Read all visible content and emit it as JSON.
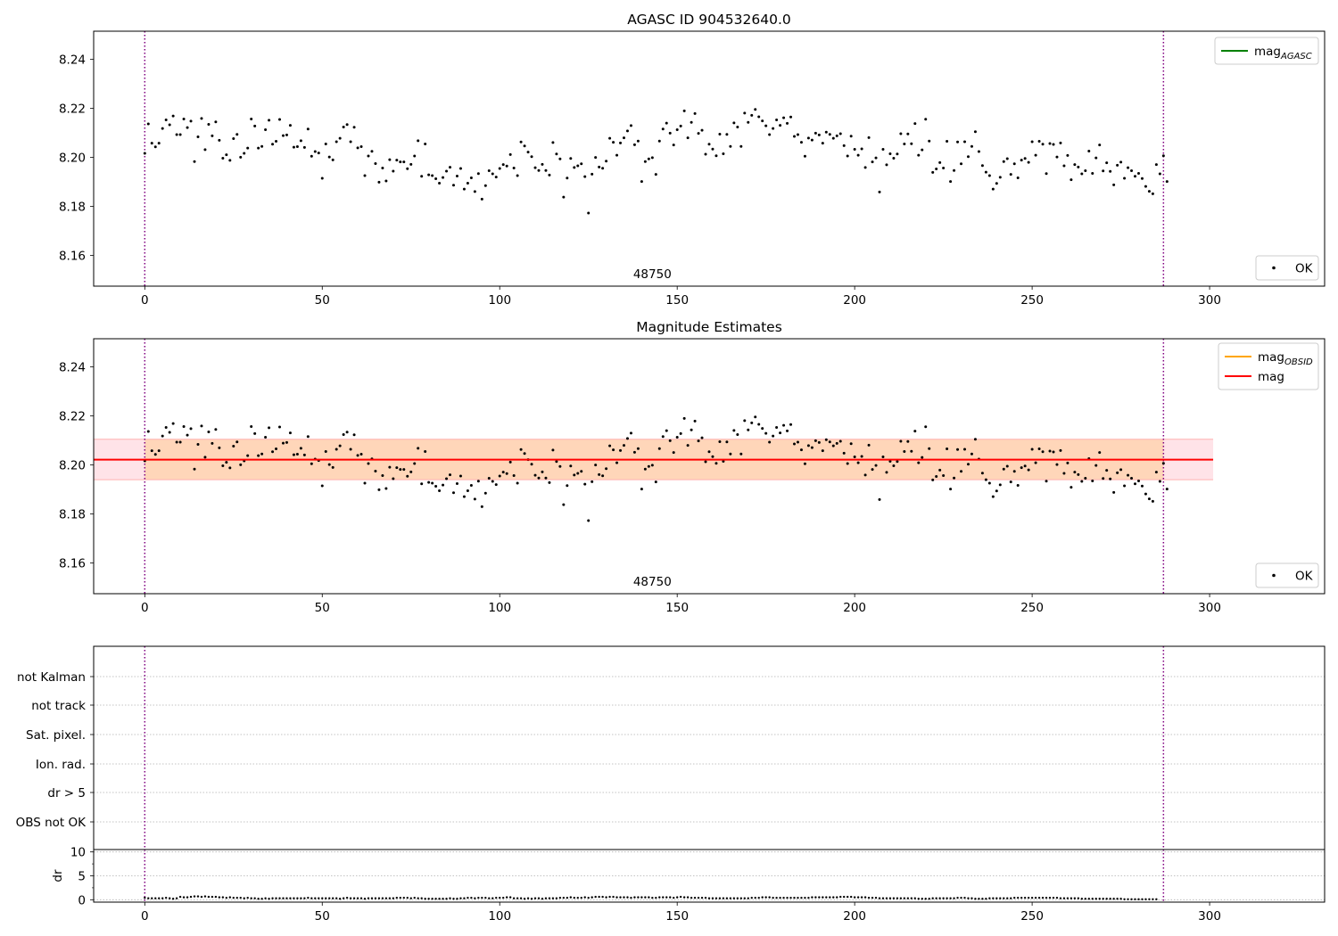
{
  "chart_data": [
    {
      "type": "scatter",
      "title": "AGASC ID 904532640.0",
      "xlabel": "",
      "ylabel": "",
      "xlim": [
        -14.4,
        332.4
      ],
      "ylim": [
        8.1475,
        8.2515
      ],
      "xticks": [
        0,
        50,
        100,
        150,
        200,
        250,
        300
      ],
      "yticks": [
        8.16,
        8.18,
        8.2,
        8.22,
        8.24
      ],
      "ytick_labels": [
        "8.16",
        "8.18",
        "8.20",
        "8.22",
        "8.24"
      ],
      "grid": false,
      "vlines": [
        0,
        287
      ],
      "annotation": {
        "text": "48750",
        "x": 143
      },
      "legend_lines": {
        "placement": "top-right",
        "entries": [
          {
            "label": "mag",
            "subscript": "AGASC",
            "color": "#008000"
          }
        ]
      },
      "legend_points": {
        "placement": "bottom-right",
        "entries": [
          {
            "label": "OK",
            "color": "#000000"
          }
        ]
      },
      "series": [
        {
          "name": "OK",
          "x_start": 0,
          "x_step": 1,
          "values": [
            8.2017,
            8.2137,
            8.2058,
            8.2043,
            8.2058,
            8.2118,
            8.2153,
            8.2133,
            8.2169,
            8.2093,
            8.2093,
            8.2157,
            8.2122,
            8.2148,
            8.1983,
            8.2084,
            8.2159,
            8.2032,
            8.2135,
            8.2088,
            8.2145,
            8.207,
            8.1997,
            8.2011,
            8.1988,
            8.2077,
            8.2094,
            8.2001,
            8.2017,
            8.2038,
            8.2157,
            8.2128,
            8.2038,
            8.2045,
            8.2113,
            8.2152,
            8.2054,
            8.2066,
            8.2155,
            8.2089,
            8.2092,
            8.2131,
            8.2042,
            8.2044,
            8.2068,
            8.2041,
            8.2116,
            8.2005,
            8.2024,
            8.2018,
            8.1915,
            8.2055,
            8.2002,
            8.199,
            8.2064,
            8.2078,
            8.2124,
            8.2134,
            8.2064,
            8.2123,
            8.2039,
            8.2044,
            8.1926,
            8.2006,
            8.2025,
            8.1975,
            8.1899,
            8.1957,
            8.1904,
            8.1991,
            8.1944,
            8.1989,
            8.1982,
            8.1982,
            8.1954,
            8.1972,
            8.2006,
            8.2068,
            8.1923,
            8.2055,
            8.1929,
            8.1926,
            8.1913,
            8.1895,
            8.1918,
            8.1944,
            8.196,
            8.1887,
            8.1924,
            8.1955,
            8.1871,
            8.1895,
            8.1917,
            8.1861,
            8.1934,
            8.183,
            8.1885,
            8.1946,
            8.1933,
            8.192,
            8.1955,
            8.1971,
            8.1965,
            8.2012,
            8.1957,
            8.1926,
            8.2063,
            8.2047,
            8.2022,
            8.2003,
            8.1958,
            8.1947,
            8.1972,
            8.1947,
            8.1928,
            8.2061,
            8.2014,
            8.1994,
            8.1838,
            8.1916,
            8.1996,
            8.1959,
            8.1966,
            8.1974,
            8.1922,
            8.1773,
            8.1932,
            8.2,
            8.1961,
            8.1956,
            8.1985,
            8.2078,
            8.2062,
            8.2009,
            8.2059,
            8.208,
            8.2108,
            8.213,
            8.2052,
            8.2067,
            8.1902,
            8.1983,
            8.1994,
            8.1999,
            8.1931,
            8.2067,
            8.2116,
            8.214,
            8.2099,
            8.2051,
            8.2113,
            8.2128,
            8.219,
            8.208,
            8.2143,
            8.2179,
            8.2098,
            8.2111,
            8.2013,
            8.2054,
            8.2034,
            8.2007,
            8.2095,
            8.2015,
            8.2094,
            8.2045,
            8.2141,
            8.2124,
            8.2045,
            8.2181,
            8.2143,
            8.2172,
            8.2196,
            8.2166,
            8.2149,
            8.2129,
            8.2093,
            8.2118,
            8.2153,
            8.2131,
            8.2162,
            8.2139,
            8.2165,
            8.2086,
            8.2093,
            8.2062,
            8.2005,
            8.2079,
            8.2071,
            8.2099,
            8.2092,
            8.2058,
            8.2103,
            8.2094,
            8.2078,
            8.2088,
            8.2097,
            8.2048,
            8.2006,
            8.2087,
            8.2033,
            8.2009,
            8.2035,
            8.1959,
            8.2081,
            8.1982,
            8.1998,
            8.1859,
            8.2033,
            8.197,
            8.2015,
            8.1997,
            8.2014,
            8.2097,
            8.2055,
            8.2096,
            8.2056,
            8.2138,
            8.2009,
            8.2031,
            8.2156,
            8.2067,
            8.1939,
            8.1953,
            8.1979,
            8.1957,
            8.2066,
            8.1902,
            8.1947,
            8.2063,
            8.1974,
            8.2064,
            8.2003,
            8.2045,
            8.2105,
            8.2024,
            8.1967,
            8.194,
            8.1926,
            8.1871,
            8.1894,
            8.1919,
            8.1983,
            8.1995,
            8.1931,
            8.1974,
            8.1917,
            8.1989,
            8.1996,
            8.198,
            8.2064,
            8.2009,
            8.2066,
            8.2054,
            8.1934,
            8.2057,
            8.2053,
            8.2002,
            8.2059,
            8.1966,
            8.2008,
            8.1909,
            8.1971,
            8.1961,
            8.1933,
            8.1946,
            8.2026,
            8.1935,
            8.1998,
            8.2051,
            8.1945,
            8.1978,
            8.1943,
            8.1888,
            8.1968,
            8.1981,
            8.1915,
            8.1958,
            8.1946,
            8.1923,
            8.1935,
            8.1914,
            8.1882,
            8.1862,
            8.1852,
            8.1971,
            8.1933,
            8.2007,
            8.1902
          ]
        }
      ]
    },
    {
      "type": "scatter",
      "title": "Magnitude Estimates",
      "xlabel": "",
      "ylabel": "",
      "xlim": [
        -14.4,
        332.4
      ],
      "ylim": [
        8.1475,
        8.2515
      ],
      "xticks": [
        0,
        50,
        100,
        150,
        200,
        250,
        300
      ],
      "yticks": [
        8.16,
        8.18,
        8.2,
        8.22,
        8.24
      ],
      "ytick_labels": [
        "8.16",
        "8.18",
        "8.20",
        "8.22",
        "8.24"
      ],
      "grid": false,
      "vlines": [
        0,
        287
      ],
      "annotation": {
        "text": "48750",
        "x": 143
      },
      "hline_mag": {
        "y": 8.2022,
        "x_from": -14.4,
        "x_to": 301,
        "color": "#ff0000"
      },
      "band_mag": {
        "y_low": 8.194,
        "y_high": 8.2105,
        "x_from": -14.4,
        "x_to": 301,
        "color": "#ffc0cb"
      },
      "band_obsid": {
        "y_low": 8.194,
        "y_high": 8.2105,
        "x_from": 0,
        "x_to": 287,
        "color": "#ffa500"
      },
      "legend_lines": {
        "placement": "top-right",
        "entries": [
          {
            "label": "mag",
            "subscript": "OBSID",
            "color": "#ffa500"
          },
          {
            "label": "mag",
            "subscript": "",
            "color": "#ff0000"
          }
        ]
      },
      "legend_points": {
        "placement": "bottom-right",
        "entries": [
          {
            "label": "OK",
            "color": "#000000"
          }
        ]
      },
      "series": [
        {
          "name": "OK",
          "same_as_panel": 0
        }
      ]
    },
    {
      "type": "scatter",
      "title": "",
      "xlabel": "",
      "ylabel": "",
      "xlim": [
        -14.4,
        332.4
      ],
      "xticks": [],
      "flag_labels": [
        "not Kalman",
        "not track",
        "Sat. pixel.",
        "Ion. rad.",
        "dr > 5",
        "OBS not OK"
      ],
      "grid": true,
      "vlines": [
        0,
        287
      ]
    },
    {
      "type": "scatter",
      "title": "",
      "xlabel": "",
      "ylabel": "dr",
      "xlim": [
        -14.4,
        332.4
      ],
      "ylim": [
        -0.5,
        10.5
      ],
      "xticks": [
        0,
        50,
        100,
        150,
        200,
        250,
        300
      ],
      "yticks": [
        0,
        5,
        10
      ],
      "grid": true,
      "vlines": [
        0,
        287
      ],
      "series": [
        {
          "name": "dr",
          "x_start": 0,
          "x_step": 1,
          "values": [
            0.4,
            0.3,
            0.3,
            0.3,
            0.3,
            0.3,
            0.4,
            0.3,
            0.2,
            0.3,
            0.6,
            0.5,
            0.5,
            0.6,
            0.7,
            0.7,
            0.6,
            0.7,
            0.6,
            0.6,
            0.6,
            0.5,
            0.5,
            0.4,
            0.5,
            0.4,
            0.4,
            0.4,
            0.3,
            0.4,
            0.3,
            0.3,
            0.2,
            0.2,
            0.3,
            0.2,
            0.3,
            0.3,
            0.3,
            0.3,
            0.3,
            0.3,
            0.3,
            0.3,
            0.3,
            0.3,
            0.4,
            0.3,
            0.3,
            0.3,
            0.3,
            0.3,
            0.3,
            0.3,
            0.3,
            0.2,
            0.3,
            0.4,
            0.3,
            0.3,
            0.3,
            0.3,
            0.2,
            0.3,
            0.3,
            0.3,
            0.3,
            0.3,
            0.3,
            0.3,
            0.3,
            0.4,
            0.4,
            0.4,
            0.4,
            0.3,
            0.4,
            0.3,
            0.3,
            0.2,
            0.2,
            0.2,
            0.2,
            0.2,
            0.2,
            0.2,
            0.3,
            0.2,
            0.2,
            0.3,
            0.3,
            0.4,
            0.4,
            0.3,
            0.4,
            0.4,
            0.4,
            0.3,
            0.3,
            0.4,
            0.4,
            0.4,
            0.5,
            0.5,
            0.3,
            0.3,
            0.3,
            0.2,
            0.3,
            0.2,
            0.3,
            0.3,
            0.2,
            0.3,
            0.3,
            0.3,
            0.3,
            0.4,
            0.4,
            0.4,
            0.5,
            0.4,
            0.4,
            0.4,
            0.5,
            0.4,
            0.5,
            0.6,
            0.6,
            0.6,
            0.5,
            0.6,
            0.6,
            0.5,
            0.5,
            0.5,
            0.5,
            0.4,
            0.5,
            0.5,
            0.5,
            0.5,
            0.5,
            0.4,
            0.4,
            0.5,
            0.5,
            0.5,
            0.5,
            0.4,
            0.5,
            0.6,
            0.5,
            0.5,
            0.4,
            0.4,
            0.4,
            0.4,
            0.4,
            0.3,
            0.3,
            0.3,
            0.3,
            0.3,
            0.3,
            0.3,
            0.3,
            0.3,
            0.3,
            0.3,
            0.3,
            0.4,
            0.4,
            0.4,
            0.5,
            0.5,
            0.5,
            0.4,
            0.4,
            0.4,
            0.4,
            0.4,
            0.4,
            0.4,
            0.4,
            0.4,
            0.4,
            0.4,
            0.5,
            0.5,
            0.5,
            0.5,
            0.5,
            0.5,
            0.5,
            0.5,
            0.6,
            0.6,
            0.6,
            0.6,
            0.5,
            0.5,
            0.5,
            0.5,
            0.4,
            0.4,
            0.4,
            0.3,
            0.3,
            0.3,
            0.3,
            0.3,
            0.3,
            0.3,
            0.3,
            0.3,
            0.3,
            0.3,
            0.2,
            0.2,
            0.2,
            0.2,
            0.3,
            0.3,
            0.3,
            0.3,
            0.3,
            0.3,
            0.3,
            0.4,
            0.4,
            0.4,
            0.3,
            0.3,
            0.2,
            0.2,
            0.2,
            0.2,
            0.3,
            0.3,
            0.3,
            0.3,
            0.3,
            0.3,
            0.3,
            0.4,
            0.4,
            0.4,
            0.4,
            0.4,
            0.4,
            0.4,
            0.4,
            0.4,
            0.4,
            0.4,
            0.4,
            0.4,
            0.3,
            0.3,
            0.3,
            0.3,
            0.3,
            0.3,
            0.2,
            0.2,
            0.2,
            0.2,
            0.2,
            0.2,
            0.2,
            0.2,
            0.2,
            0.2,
            0.2,
            0.2,
            0.1,
            0.1,
            0.1,
            0.1,
            0.1,
            0.1,
            0.1,
            0.1,
            0.1,
            0.1
          ]
        }
      ]
    }
  ]
}
